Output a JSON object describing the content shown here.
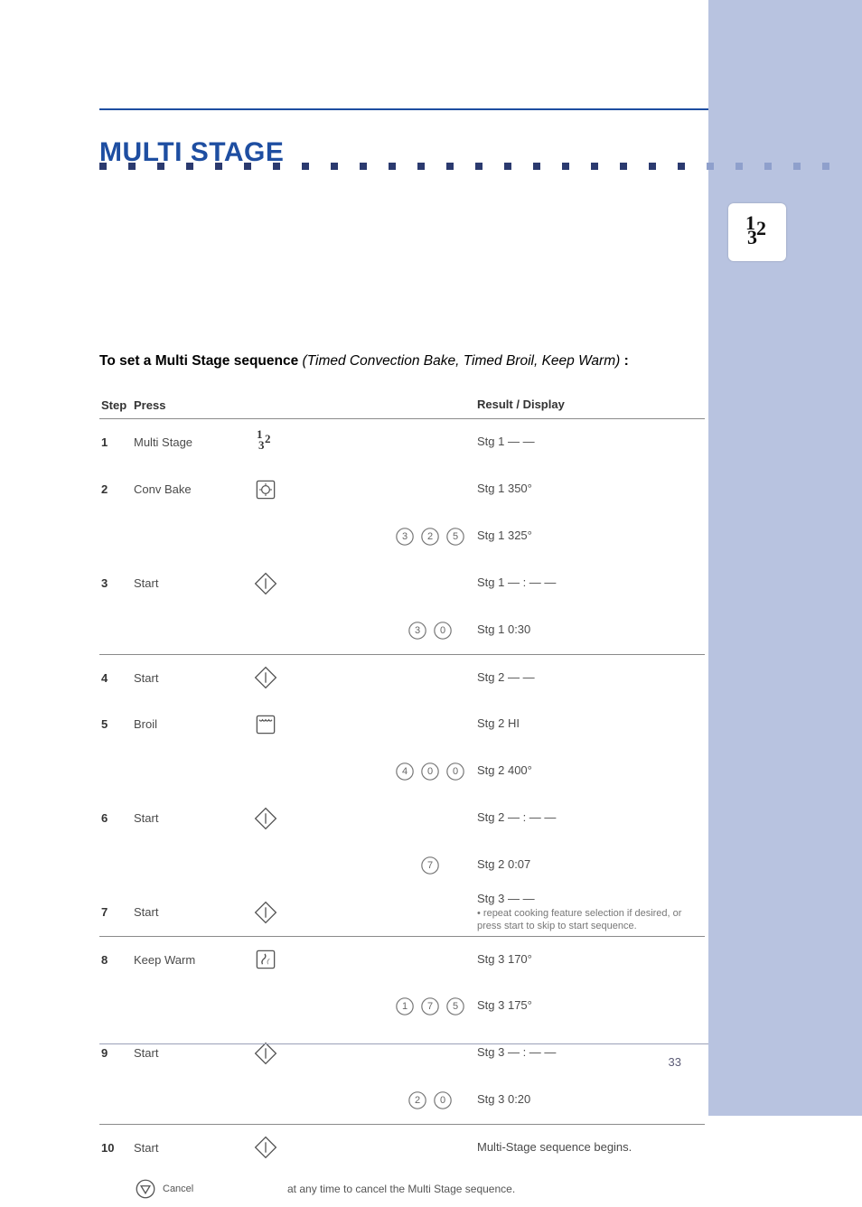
{
  "colors": {
    "rightBand": "#b8c3e0",
    "rule": "#1e4ea1",
    "darkDot": "#2b3a6f",
    "lightDot": "#b8c3e0",
    "tableLine": "#8a8a8a"
  },
  "title": "MULTI STAGE",
  "intro": {
    "lead": "To set a Multi Stage sequence",
    "paren": "(Timed Convection Bake, Timed Broil, Keep Warm)",
    "tail": ":"
  },
  "tableHeader": {
    "step": "Step",
    "press": "Press",
    "result": "Result / Display"
  },
  "rows": [
    {
      "num": "1",
      "label": "Multi Stage",
      "icon": "multistage",
      "result": "Stg 1  — —"
    },
    {
      "num": "2",
      "label": "Conv Bake",
      "icon": "convbake",
      "result": "Stg 1   350°"
    },
    {
      "num": "",
      "label": "",
      "icon": "",
      "numpad": [
        "3",
        "2",
        "5"
      ],
      "result": "Stg 1   325°"
    },
    {
      "num": "3",
      "label": "Start",
      "icon": "start",
      "result": "Stg 1   — : — —"
    },
    {
      "num": "",
      "label": "",
      "icon": "",
      "numpad": [
        "3",
        "0"
      ],
      "result": "Stg 1   0:30"
    },
    {
      "num": "4",
      "label": "Start",
      "icon": "start",
      "result": "Stg 2  — —",
      "topline": true
    },
    {
      "num": "5",
      "label": "Broil",
      "icon": "broil",
      "result": "Stg 2   HI"
    },
    {
      "num": "",
      "label": "",
      "icon": "",
      "numpad": [
        "4",
        "0",
        "0"
      ],
      "result": "Stg 2   400°"
    },
    {
      "num": "6",
      "label": "Start",
      "icon": "start",
      "result": "Stg 2   — : — —"
    },
    {
      "num": "",
      "label": "",
      "icon": "",
      "numpad": [
        "7"
      ],
      "result": "Stg 2   0:07"
    },
    {
      "num": "7",
      "label": "Start",
      "icon": "start",
      "result": "Stg 3  — —",
      "suffix": " • repeat cooking feature selection if desired, or press start to skip to start sequence.",
      "sub": true
    },
    {
      "num": "8",
      "label": "Keep Warm",
      "icon": "keepwarm",
      "result": "Stg 3   170°",
      "topline": true
    },
    {
      "num": "",
      "label": "",
      "icon": "",
      "numpad": [
        "1",
        "7",
        "5"
      ],
      "result": "Stg 3   175°"
    },
    {
      "num": "9",
      "label": "Start",
      "icon": "start",
      "result": "Stg 3   — : — —"
    },
    {
      "num": "",
      "label": "",
      "icon": "",
      "numpad": [
        "2",
        "0"
      ],
      "result": "Stg 3   0:20"
    },
    {
      "num": "10",
      "label": "Start",
      "icon": "start",
      "result": "Multi-Stage sequence begins.",
      "topline": true
    }
  ],
  "footerNote": {
    "label": "Cancel",
    "text": " at any time to cancel the Multi Stage sequence."
  },
  "pageNumber": "33"
}
